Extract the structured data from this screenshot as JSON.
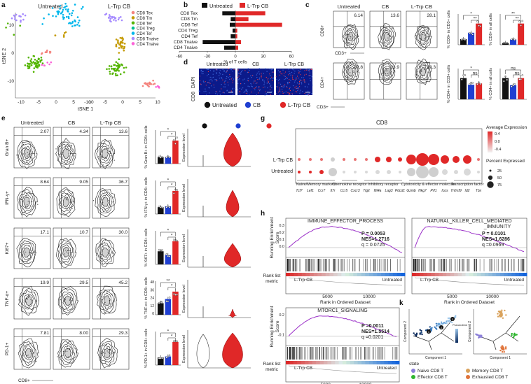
{
  "colors": {
    "untreated": "#111111",
    "cb": "#1f3fd1",
    "ltrp": "#e02828",
    "purple": "#9b30c8",
    "grey": "#999999"
  },
  "panel_letters": {
    "a": "a",
    "b": "b",
    "c": "c",
    "d": "d",
    "e": "e",
    "f": "f",
    "g": "g",
    "h": "h",
    "i": "i",
    "j": "j",
    "k": "k",
    "l": "l"
  },
  "tsne": {
    "xlabel": "tSNE 1",
    "ylabel": "tSNE 2",
    "title_left": "Untreated",
    "title_right": "L-Trp CB",
    "legend": [
      {
        "label": "CD8 Tex",
        "color": "#f4837d"
      },
      {
        "label": "CD8 Tm",
        "color": "#c49a00"
      },
      {
        "label": "CD8 Tef",
        "color": "#53b400"
      },
      {
        "label": "CD4 Treg",
        "color": "#00c094"
      },
      {
        "label": "CD4 Tef",
        "color": "#00b6eb"
      },
      {
        "label": "CD8 Tnaive",
        "color": "#a58aff"
      },
      {
        "label": "CD4 Tnaive",
        "color": "#fb61d7"
      }
    ],
    "xticks": [
      "-10",
      "-5",
      "0",
      "5",
      "10"
    ],
    "yticks": [
      "10",
      "0",
      "-10"
    ]
  },
  "chart_data": [
    {
      "type": "bar",
      "title": "",
      "legend": [
        "Untreated",
        "L-Trp CB"
      ],
      "categories": [
        "CD8 Tex",
        "CD8 Tm",
        "CD8 Tef",
        "CD4 Treg",
        "CD4 Tef",
        "CD8 Tnaive",
        "CD4 Tnaive"
      ],
      "series": [
        {
          "name": "Untreated",
          "values": [
            -14,
            -5,
            -6,
            -3,
            -5,
            -35,
            -12
          ]
        },
        {
          "name": "L-Trp CB",
          "values": [
            32,
            14,
            50,
            2,
            2,
            6,
            3
          ]
        }
      ],
      "xlabel": "% of T cells",
      "xlim": [
        -60,
        60
      ],
      "xticks": [
        "-60",
        "-30",
        "0",
        "30",
        "60"
      ]
    },
    {
      "type": "bar",
      "ylabel": "% CD8+ in CD3+ cells",
      "categories": [
        "Untreated",
        "CB",
        "L-Trp CB"
      ],
      "values": [
        8,
        17,
        30
      ],
      "sig": [
        "*",
        "**"
      ]
    },
    {
      "type": "bar",
      "ylabel": "% CD8+ in all cells",
      "categories": [
        "Untreated",
        "CB",
        "L-Trp CB"
      ],
      "values": [
        1,
        3,
        12
      ],
      "sig": [
        "**",
        "**"
      ]
    },
    {
      "type": "bar",
      "ylabel": "% CD4+ in CD3+ cells",
      "categories": [
        "Untreated",
        "CB",
        "L-Trp CB"
      ],
      "values": [
        32,
        22,
        24
      ],
      "sig": [
        "*",
        "ns"
      ]
    },
    {
      "type": "bar",
      "ylabel": "% CD4+ in all cells",
      "categories": [
        "Untreated",
        "CB",
        "L-Trp CB"
      ],
      "values": [
        3,
        2,
        3
      ],
      "sig": [
        "ns",
        "ns"
      ]
    },
    {
      "type": "bar",
      "ylabel": "% Gran B+ in CD8+ cells",
      "categories": [
        "Untreated",
        "CB",
        "L-Trp CB"
      ],
      "values": [
        4,
        4,
        14
      ],
      "sig": [
        "*",
        "*"
      ]
    },
    {
      "type": "bar",
      "ylabel": "% IFN-γ+ in CD8+ cells",
      "categories": [
        "Untreated",
        "CB",
        "L-Trp CB"
      ],
      "values": [
        8,
        9,
        27
      ],
      "sig": [
        "*",
        "*"
      ]
    },
    {
      "type": "bar",
      "ylabel": "% Ki67+ in CD8+ cells",
      "categories": [
        "Untreated",
        "CB",
        "L-Trp CB"
      ],
      "values": [
        17,
        12,
        30
      ],
      "sig": [
        "*",
        "*"
      ]
    },
    {
      "type": "bar",
      "ylabel": "% TNF-α+ in CD8+ cells",
      "categories": [
        "Untreated",
        "CB",
        "L-Trp CB"
      ],
      "values": [
        22,
        30,
        44
      ],
      "sig": [
        "**",
        "*"
      ],
      "yticks": [
        "48",
        "36",
        "24",
        "12",
        "0"
      ]
    },
    {
      "type": "bar",
      "ylabel": "% PD-1+ in CD8+ cells",
      "categories": [
        "Untreated",
        "CB",
        "L-Trp CB"
      ],
      "values": [
        8,
        9,
        24
      ],
      "sig": [
        "*",
        "*"
      ]
    }
  ],
  "flow_cd8": {
    "col_titles": [
      "Untreated",
      "CB",
      "L-Trp CB"
    ],
    "xlabel": "CD3+",
    "ylabel": "CD8+",
    "values": [
      "6.14",
      "13.6",
      "28.1"
    ]
  },
  "flow_cd4": {
    "xlabel": "CD3+",
    "ylabel": "CD4+",
    "values": [
      "32.8",
      "23.9",
      "28.3"
    ]
  },
  "if": {
    "titles": [
      "Untreated",
      "CB",
      "L-Trp CB"
    ],
    "stain_left": "CD8",
    "stain_right": "DAPI"
  },
  "group_legend": [
    "Untreated",
    "CB",
    "L-Trp CB"
  ],
  "flow_rows": {
    "col_titles": [
      "Untreated",
      "CB",
      "L-Trp CB"
    ],
    "xlabel": "CD8+",
    "rows": [
      {
        "ylabel": "Gran B+",
        "values": [
          "2.07",
          "4.34",
          "13.6"
        ]
      },
      {
        "ylabel": "IFN-γ+",
        "values": [
          "8.64",
          "9.05",
          "36.7"
        ]
      },
      {
        "ylabel": "Ki67+",
        "values": [
          "17.1",
          "10.7",
          "30.0"
        ]
      },
      {
        "ylabel": "TNF-α+",
        "values": [
          "19.9",
          "29.5",
          "45.2"
        ]
      },
      {
        "ylabel": "PD-1+",
        "values": [
          "7.81",
          "8.00",
          "29.3"
        ]
      }
    ],
    "violin_ylabel": "Expression level"
  },
  "dotplot": {
    "title": "CD8",
    "rows": [
      "L-Trp CB",
      "Untreated"
    ],
    "genes": [
      "Tcf7",
      "Lef1",
      "Ccr7",
      "Il7r",
      "Ccr5",
      "Cxcr3",
      "Tigit",
      "Ifit4a",
      "Lag3",
      "Pdcd1",
      "Gzmb",
      "Nkg7",
      "Prf1",
      "Icos",
      "Tnfrsf9",
      "Id2",
      "Tbx"
    ],
    "groups": [
      "Naive/Memory markers",
      "Chemokine receptor",
      "Inhibitory receptor",
      "Cytotoxicity & effector molecule",
      "Transcription factor"
    ],
    "legend_expr_title": "Average Expression",
    "legend_expr_ticks": [
      "0.4",
      "0.0",
      "-0.4"
    ],
    "legend_pct_title": "Percent Expressed",
    "legend_pct_ticks": [
      "25",
      "50",
      "75"
    ]
  },
  "gsea": [
    {
      "title": "IMMUNE_EFFECTOR_PROCESS",
      "p": "P = 0.0053",
      "nes": "NES=1.2716",
      "q": "q = 0.0725"
    },
    {
      "title": "NATURAL_KILLER_CELL_MEDIATED",
      "title2": "_IMMUNITY",
      "p": "P = 0.0101",
      "nes": "NES=1.6286",
      "q": "q =0.0969"
    },
    {
      "title": "MTORC1_SIGNALING",
      "p": "P =0.0011",
      "nes": "NES=1.5514",
      "q": "q =0.0201"
    }
  ],
  "gsea_axes": {
    "ylabel1": "Running Enrichment",
    "ylabel2": "Score",
    "rank_label1": "Rank list",
    "rank_label2": "metric",
    "xlabel": "Rank in Ordered Dataset",
    "left": "L-Trp CB",
    "right": "Untreated",
    "xticks": [
      "5000",
      "10000"
    ],
    "yticks_a": [
      "0.3",
      "0.2",
      "0.1",
      "0.0"
    ],
    "yticks_b": [
      "0.2",
      "-0.1"
    ]
  },
  "trajectory": {
    "xlabel": "Component 1",
    "ylabel": "Component 2",
    "pseudo_label": "Pseudotime",
    "state_title": "state",
    "states": [
      {
        "label": "Naive CD8 T",
        "color": "#8b7fd9"
      },
      {
        "label": "Memory CD8 T",
        "color": "#d9a15a"
      },
      {
        "label": "Effector CD8 T",
        "color": "#2fb62f"
      },
      {
        "label": "Exhausted CD8 T",
        "color": "#e0743a"
      }
    ],
    "branch_labels": [
      "1",
      "2",
      "3"
    ]
  }
}
